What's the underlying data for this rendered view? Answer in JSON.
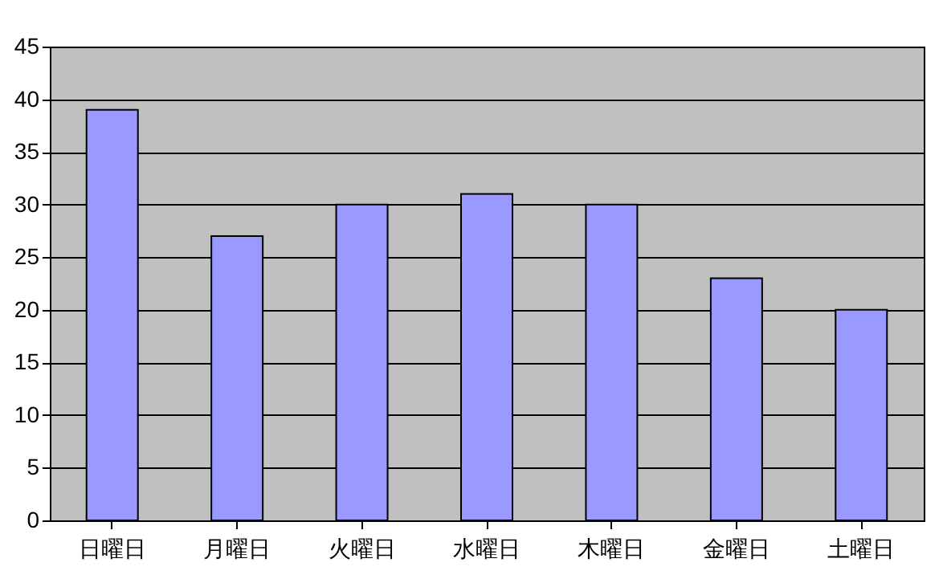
{
  "chart_data": {
    "type": "bar",
    "categories": [
      "日曜日",
      "月曜日",
      "火曜日",
      "水曜日",
      "木曜日",
      "金曜日",
      "土曜日"
    ],
    "values": [
      39,
      27,
      30,
      31,
      30,
      23,
      20
    ],
    "color": "#9999ff",
    "ylim": [
      0,
      45
    ],
    "yticks": [
      0,
      5,
      10,
      15,
      20,
      25,
      30,
      35,
      40,
      45
    ],
    "grid": "y"
  }
}
